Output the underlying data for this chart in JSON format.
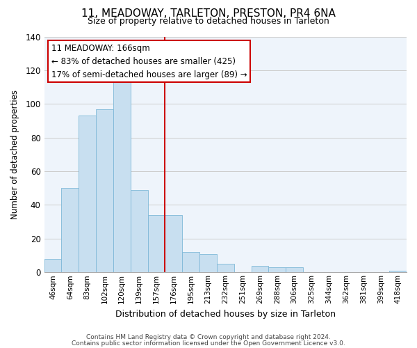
{
  "title": "11, MEADOWAY, TARLETON, PRESTON, PR4 6NA",
  "subtitle": "Size of property relative to detached houses in Tarleton",
  "xlabel": "Distribution of detached houses by size in Tarleton",
  "ylabel": "Number of detached properties",
  "bar_color": "#c8dff0",
  "bar_edge_color": "#7fb8d8",
  "categories": [
    "46sqm",
    "64sqm",
    "83sqm",
    "102sqm",
    "120sqm",
    "139sqm",
    "157sqm",
    "176sqm",
    "195sqm",
    "213sqm",
    "232sqm",
    "251sqm",
    "269sqm",
    "288sqm",
    "306sqm",
    "325sqm",
    "344sqm",
    "362sqm",
    "381sqm",
    "399sqm",
    "418sqm"
  ],
  "values": [
    8,
    50,
    93,
    97,
    113,
    49,
    34,
    34,
    12,
    11,
    5,
    0,
    4,
    3,
    3,
    0,
    0,
    0,
    0,
    0,
    1
  ],
  "vline_x": 6.5,
  "vline_color": "#cc0000",
  "annotation_title": "11 MEADOWAY: 166sqm",
  "annotation_line1": "← 83% of detached houses are smaller (425)",
  "annotation_line2": "17% of semi-detached houses are larger (89) →",
  "annotation_box_color": "#ffffff",
  "annotation_box_edge": "#cc0000",
  "ylim": [
    0,
    140
  ],
  "yticks": [
    0,
    20,
    40,
    60,
    80,
    100,
    120,
    140
  ],
  "footnote1": "Contains HM Land Registry data © Crown copyright and database right 2024.",
  "footnote2": "Contains public sector information licensed under the Open Government Licence v3.0.",
  "background_color": "#ffffff",
  "grid_color": "#cccccc"
}
